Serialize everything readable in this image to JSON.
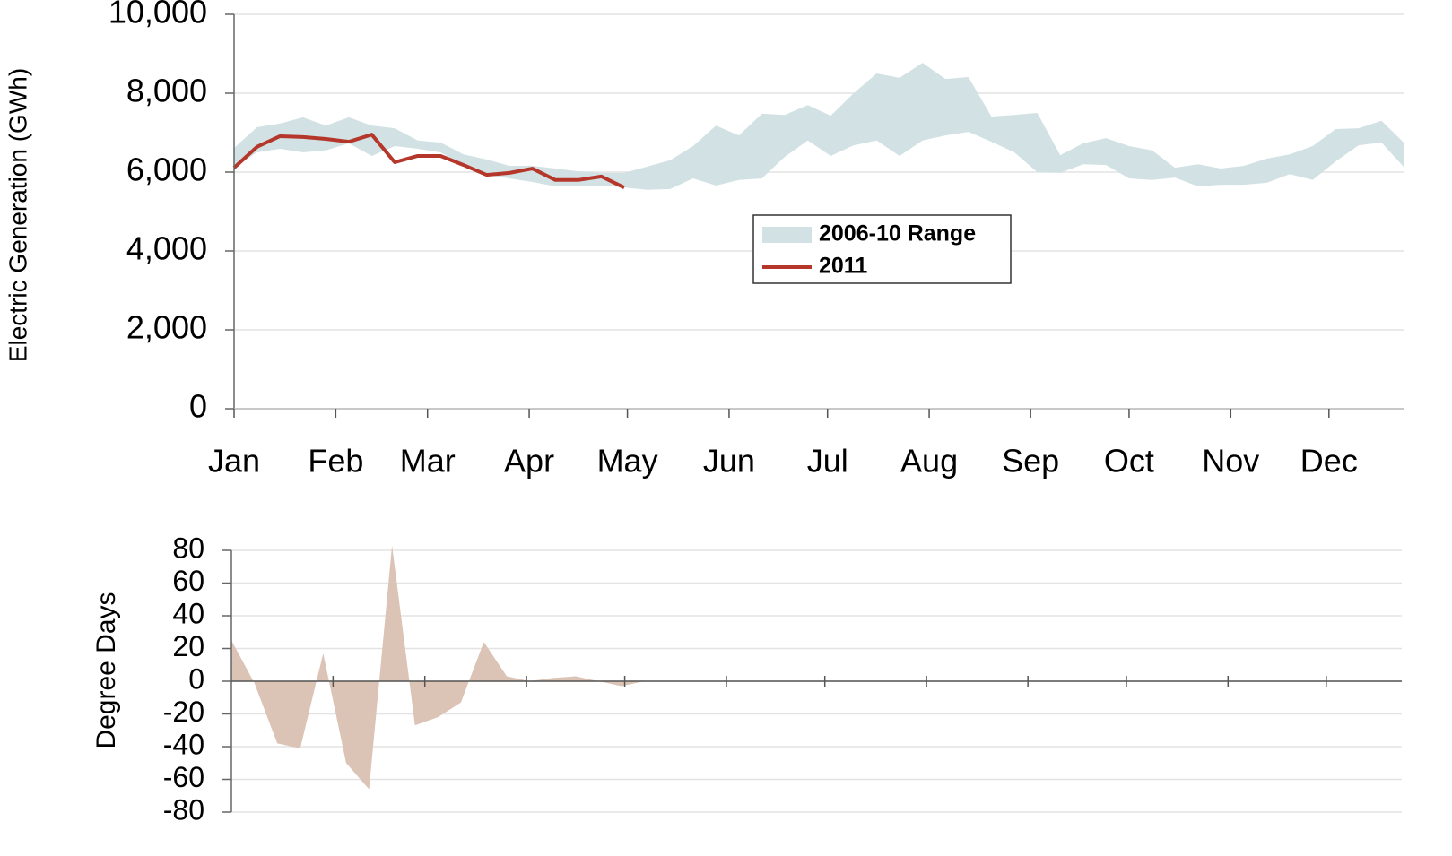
{
  "chart_data": [
    {
      "type": "line",
      "y_label": "Electric Generation (GWh)",
      "x": [
        0,
        1,
        2,
        3,
        4,
        5,
        6,
        7,
        8,
        9,
        10,
        11,
        12,
        13,
        14,
        15,
        16,
        17,
        18,
        19,
        20,
        21,
        22,
        23,
        24,
        25,
        26,
        27,
        28,
        29,
        30,
        31,
        32,
        33,
        34,
        35,
        36,
        37,
        38,
        39,
        40,
        41,
        42,
        43,
        44,
        45,
        46,
        47,
        48,
        49,
        50,
        51
      ],
      "xlim": [
        0,
        51
      ],
      "xticks": [
        {
          "value": 0,
          "label": "Jan"
        },
        {
          "value": 4.43,
          "label": "Feb"
        },
        {
          "value": 8.43,
          "label": "Mar"
        },
        {
          "value": 12.86,
          "label": "Apr"
        },
        {
          "value": 17.14,
          "label": "May"
        },
        {
          "value": 21.57,
          "label": "Jun"
        },
        {
          "value": 25.86,
          "label": "Jul"
        },
        {
          "value": 30.29,
          "label": "Aug"
        },
        {
          "value": 34.71,
          "label": "Sep"
        },
        {
          "value": 39,
          "label": "Oct"
        },
        {
          "value": 43.43,
          "label": "Nov"
        },
        {
          "value": 47.71,
          "label": "Dec"
        }
      ],
      "ylim": [
        0,
        10000
      ],
      "yticks": [
        0,
        {
          "value": 2000,
          "label": "2,000"
        },
        {
          "value": 4000,
          "label": "4,000"
        },
        {
          "value": 6000,
          "label": "6,000"
        },
        {
          "value": 8000,
          "label": "8,000"
        },
        {
          "value": 10000,
          "label": "10,000"
        }
      ],
      "grid": true,
      "legend": "center",
      "series": [
        {
          "name": "2006-10 Range",
          "type": "range",
          "color": "#d2e1e3",
          "lower": [
            6110,
            6500,
            6590,
            6500,
            6550,
            6730,
            6410,
            6660,
            6590,
            6500,
            6180,
            5930,
            5840,
            5750,
            5640,
            5660,
            5660,
            5610,
            5550,
            5570,
            5840,
            5660,
            5800,
            5840,
            6390,
            6800,
            6410,
            6680,
            6800,
            6410,
            6800,
            6930,
            7020,
            6770,
            6500,
            6000,
            5980,
            6200,
            6180,
            5840,
            5800,
            5860,
            5640,
            5680,
            5680,
            5730,
            5950,
            5800,
            6270,
            6680,
            6750,
            6110
          ],
          "upper": [
            6610,
            7140,
            7230,
            7390,
            7180,
            7390,
            7180,
            7110,
            6800,
            6750,
            6450,
            6320,
            6160,
            6160,
            6090,
            6020,
            5980,
            5980,
            6140,
            6300,
            6660,
            7180,
            6930,
            7480,
            7450,
            7700,
            7430,
            8000,
            8500,
            8390,
            8770,
            8360,
            8410,
            7410,
            7450,
            7500,
            6430,
            6730,
            6860,
            6660,
            6550,
            6110,
            6200,
            6090,
            6160,
            6340,
            6450,
            6660,
            7090,
            7110,
            7300,
            6730
          ]
        },
        {
          "name": "2011",
          "color": "#b5362a",
          "values": [
            6110,
            6640,
            6910,
            6890,
            6840,
            6770,
            6950,
            6250,
            6410,
            6410,
            6180,
            5930,
            5980,
            6090,
            5800,
            5800,
            5890,
            5610,
            null,
            null,
            null,
            null,
            null,
            null,
            null,
            null,
            null,
            null,
            null,
            null,
            null,
            null,
            null,
            null,
            null,
            null,
            null,
            null,
            null,
            null,
            null,
            null,
            null,
            null,
            null,
            null,
            null,
            null,
            null,
            null,
            null,
            null
          ]
        }
      ]
    },
    {
      "type": "area",
      "y_label": "Degree Days",
      "x": [
        0,
        1,
        2,
        3,
        4,
        5,
        6,
        7,
        8,
        9,
        10,
        11,
        12,
        13,
        14,
        15,
        16,
        17,
        18,
        19,
        20,
        21,
        22,
        23,
        24,
        25,
        26,
        27,
        28,
        29,
        30,
        31,
        32,
        33,
        34,
        35,
        36,
        37,
        38,
        39,
        40,
        41,
        42,
        43,
        44,
        45,
        46,
        47,
        48,
        49,
        50,
        51
      ],
      "xlim": [
        0,
        51
      ],
      "xticks": [
        4.43,
        8.43,
        12.86,
        17.14,
        21.57,
        25.86,
        30.29,
        34.71,
        39,
        43.43,
        47.71
      ],
      "xtick_labels": false,
      "ylim": [
        -80,
        80
      ],
      "yticks": [
        -80,
        -60,
        -40,
        -20,
        0,
        20,
        40,
        60,
        80
      ],
      "grid": true,
      "color": "#dbc3b5",
      "values": [
        25,
        -1,
        -38,
        -41,
        17,
        -50,
        -66,
        83,
        -27,
        -22,
        -13,
        24,
        3,
        0,
        2,
        3,
        0,
        -3,
        0,
        null,
        null,
        null,
        null,
        null,
        null,
        null,
        null,
        null,
        null,
        null,
        null,
        null,
        null,
        null,
        null,
        null,
        null,
        null,
        null,
        null,
        null,
        null,
        null,
        null,
        null,
        null,
        null,
        null,
        null,
        null,
        null,
        null
      ]
    }
  ]
}
